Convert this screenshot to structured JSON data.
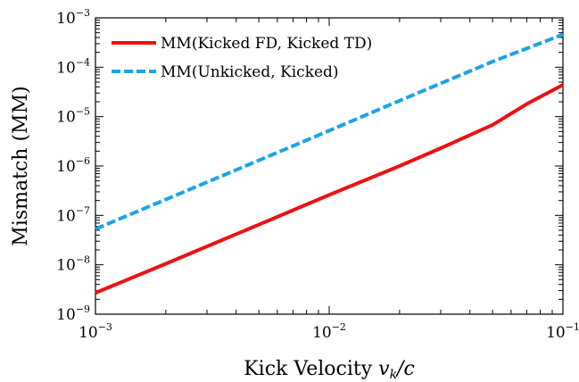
{
  "chart_data": {
    "type": "line",
    "xlabel": "Kick Velocity v_k/c",
    "xlabel_parts": {
      "prefix": "Kick Velocity ",
      "var": "v",
      "sub": "k",
      "suffix": "/c"
    },
    "ylabel": "Mismatch (MM)",
    "xscale": "log",
    "yscale": "log",
    "xlim": [
      0.001,
      0.1
    ],
    "ylim": [
      1e-09,
      0.001
    ],
    "x_ticks": [
      {
        "base": "10",
        "exp": "−3",
        "value": 0.001
      },
      {
        "base": "10",
        "exp": "−2",
        "value": 0.01
      },
      {
        "base": "10",
        "exp": "−1",
        "value": 0.1
      }
    ],
    "y_ticks": [
      {
        "base": "10",
        "exp": "−9",
        "value": 1e-09
      },
      {
        "base": "10",
        "exp": "−8",
        "value": 1e-08
      },
      {
        "base": "10",
        "exp": "−7",
        "value": 1e-07
      },
      {
        "base": "10",
        "exp": "−6",
        "value": 1e-06
      },
      {
        "base": "10",
        "exp": "−5",
        "value": 1e-05
      },
      {
        "base": "10",
        "exp": "−4",
        "value": 0.0001
      },
      {
        "base": "10",
        "exp": "−3",
        "value": 0.001
      }
    ],
    "grid": false,
    "legend_position": "top-left",
    "series": [
      {
        "name": "MM(Kicked FD, Kicked TD)",
        "color": "#ee1111",
        "style": "solid",
        "x": [
          0.001,
          0.002,
          0.005,
          0.01,
          0.02,
          0.03,
          0.05,
          0.07,
          0.1
        ],
        "y": [
          2.7e-09,
          1.05e-08,
          6.5e-08,
          2.6e-07,
          1e-06,
          2.3e-06,
          6.8e-06,
          1.8e-05,
          4.4e-05
        ]
      },
      {
        "name": "MM(Unkicked, Kicked)",
        "color": "#1ba3e8",
        "style": "dashed",
        "x": [
          0.001,
          0.002,
          0.005,
          0.01,
          0.02,
          0.05,
          0.1
        ],
        "y": [
          5.3e-08,
          2.1e-07,
          1.3e-06,
          5.2e-06,
          2.1e-05,
          0.00013,
          0.00046
        ]
      }
    ]
  }
}
